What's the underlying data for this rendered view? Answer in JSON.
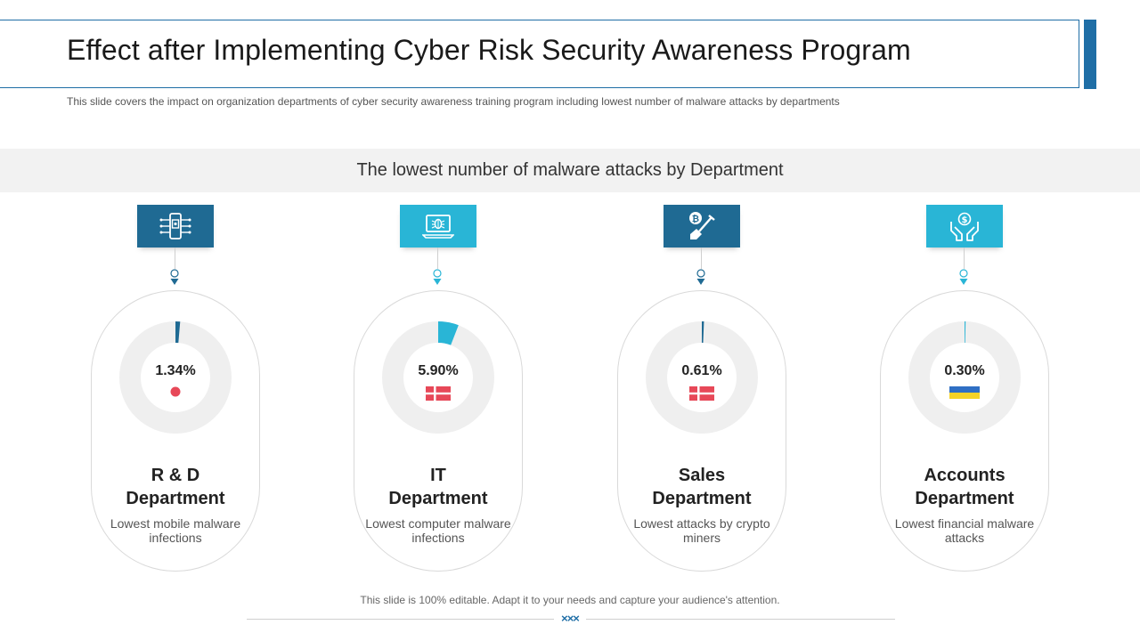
{
  "header": {
    "title": "Effect after Implementing Cyber Risk Security Awareness Program",
    "subtitle": "This slide covers the impact on organization departments of cyber security awareness training program including lowest number of malware attacks by departments"
  },
  "banner": {
    "text": "The lowest number of malware attacks by Department"
  },
  "colors": {
    "dark_blue": "#1f6a93",
    "light_blue": "#29b5d6",
    "ring_gray": "#efefef"
  },
  "departments": [
    {
      "name_line1": "R & D",
      "name_line2": "Department",
      "value": 1.34,
      "value_label": "1.34%",
      "description": "Lowest mobile malware infections",
      "icon": "mobile-chip-icon",
      "color": "#1f6a93",
      "indicator": "red-dot-icon"
    },
    {
      "name_line1": "IT",
      "name_line2": "Department",
      "value": 5.9,
      "value_label": "5.90%",
      "description": "Lowest computer malware infections",
      "icon": "laptop-bug-icon",
      "color": "#29b5d6",
      "indicator": "red-flag-icon"
    },
    {
      "name_line1": "Sales",
      "name_line2": "Department",
      "value": 0.61,
      "value_label": "0.61%",
      "description": "Lowest attacks by crypto miners",
      "icon": "bitcoin-shovel-icon",
      "color": "#1f6a93",
      "indicator": "red-flag-icon"
    },
    {
      "name_line1": "Accounts",
      "name_line2": "Department",
      "value": 0.3,
      "value_label": "0.30%",
      "description": "Lowest financial malware attacks",
      "icon": "hands-dollar-icon",
      "color": "#29b5d6",
      "indicator": "ukraine-flag-icon"
    }
  ],
  "footer": {
    "text": "This slide is 100% editable. Adapt it to your needs and capture your audience's attention.",
    "mark": "×××"
  }
}
